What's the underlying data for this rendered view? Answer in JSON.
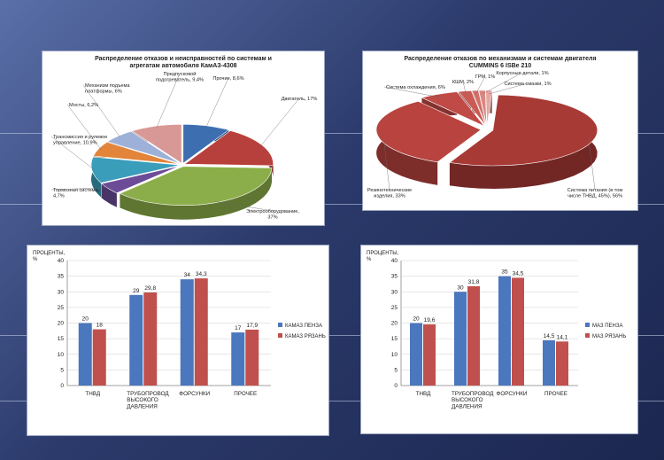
{
  "chart_data": [
    {
      "type": "pie",
      "title": "Распределение отказов и неисправностей по системам и агрегатам автомобиля КамАЗ-4308",
      "slices": [
        {
          "label": "Прочие, 8,6%",
          "value": 8.6,
          "color": "#3d6fb0"
        },
        {
          "label": "Двигатель, 17%",
          "value": 17,
          "color": "#b8403c"
        },
        {
          "label": "Электрооборудование, 37%",
          "value": 37,
          "color": "#8cae4a"
        },
        {
          "label": "Тормозная система, 4,7%",
          "value": 4.7,
          "color": "#6c4c97"
        },
        {
          "label": "Трансмиссия и рулевое управление, 10,9%",
          "value": 10.9,
          "color": "#3a9dba"
        },
        {
          "label": "Мосты, 6,2%",
          "value": 6.2,
          "color": "#e2843a"
        },
        {
          "label": "Механизм подъема платформы, 6%",
          "value": 6,
          "color": "#9db1d8"
        },
        {
          "label": "Предпусковой подогреватель, 9,4%",
          "value": 9.4,
          "color": "#d89896"
        }
      ]
    },
    {
      "type": "pie",
      "title": "Распределение отказов по механизмам и системам двигателя CUMMINS 6 ISBe 210",
      "slices": [
        {
          "label": "Система питания (в том числе ТНВД, 45%), 56%",
          "value": 56,
          "color": "#a83a36"
        },
        {
          "label": "Резинотехнические изделия, 33%",
          "value": 33,
          "color": "#b8433f"
        },
        {
          "label": "Система охлаждения, 6%",
          "value": 6,
          "color": "#c04a45"
        },
        {
          "label": "КШМ, 2%",
          "value": 2,
          "color": "#c95a55"
        },
        {
          "label": "ГРМ, 1%",
          "value": 1,
          "color": "#d36e69"
        },
        {
          "label": "Корпусные детали, 1%",
          "value": 1,
          "color": "#dc8783"
        },
        {
          "label": "Система смазки, 1%",
          "value": 1,
          "color": "#e6a6a2"
        }
      ]
    },
    {
      "type": "bar",
      "ylabel": "ПРОЦЕНТЫ,\n%",
      "ylim": [
        0,
        40
      ],
      "yticks": [
        0,
        5,
        10,
        15,
        20,
        25,
        30,
        35,
        40
      ],
      "categories": [
        "ТНВД",
        "ТРУБОПРОВОД\nВЫСОКОГО\nДАВЛЕНИЯ",
        "ФОРСУНКИ",
        "ПРОЧЕЕ"
      ],
      "series": [
        {
          "name": "КАМАЗ ПЕНЗА",
          "values": [
            20,
            29,
            34,
            17
          ],
          "labels": [
            "20",
            "29",
            "34",
            "17"
          ],
          "color": "#4a77bd"
        },
        {
          "name": "КАМАЗ РЯЗАНЬ",
          "values": [
            18,
            29.8,
            34.3,
            17.9
          ],
          "labels": [
            "18",
            "29,8",
            "34,3",
            "17,9"
          ],
          "color": "#c0504d"
        }
      ]
    },
    {
      "type": "bar",
      "ylabel": "ПРОЦЕНТЫ,\n%",
      "ylim": [
        0,
        40
      ],
      "yticks": [
        0,
        5,
        10,
        15,
        20,
        25,
        30,
        35,
        40
      ],
      "categories": [
        "ТНВД",
        "ТРУБОПРОВОД\nВЫСОКОГО\nДАВЛЕНИЯ",
        "ФОРСУНКИ",
        "ПРОЧЕЕ"
      ],
      "series": [
        {
          "name": "МАЗ ПЕНЗА",
          "values": [
            20,
            30,
            35,
            14.5
          ],
          "labels": [
            "20",
            "30",
            "35",
            "14,5"
          ],
          "color": "#4a77bd"
        },
        {
          "name": "МАЗ РЯЗАНЬ",
          "values": [
            19.6,
            31.8,
            34.5,
            14.1
          ],
          "labels": [
            "19,6",
            "31,8",
            "34,5",
            "14,1"
          ],
          "color": "#c0504d"
        }
      ]
    }
  ]
}
